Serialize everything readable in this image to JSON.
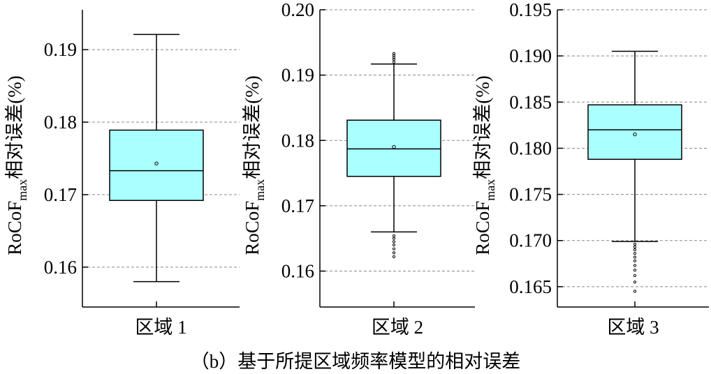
{
  "caption": "（b）基于所提区域频率模型的相对误差",
  "colors": {
    "box_fill": "#aaffff",
    "grid": "#888888",
    "axis": "#000000"
  },
  "chart_data": [
    {
      "type": "box",
      "category": "区域 1",
      "ylabel_main": "RoCoF",
      "ylabel_sub": "max",
      "ylabel_rest": "相对误差(%)",
      "ylim": [
        0.1545,
        0.1955
      ],
      "yticks": [
        0.16,
        0.17,
        0.18,
        0.19
      ],
      "ytick_labels": [
        "0.16",
        "0.17",
        "0.18",
        "0.19"
      ],
      "grid": true,
      "whisker_low": 0.158,
      "q1": 0.1692,
      "median": 0.1733,
      "q3": 0.1789,
      "whisker_high": 0.1921,
      "mean": 0.1743,
      "outliers": []
    },
    {
      "type": "box",
      "category": "区域 2",
      "ylabel_main": "RoCoF",
      "ylabel_sub": "max",
      "ylabel_rest": "相对误差(%)",
      "ylim": [
        0.1545,
        0.2
      ],
      "yticks": [
        0.16,
        0.17,
        0.18,
        0.19,
        0.2
      ],
      "ytick_labels": [
        "0.16",
        "0.17",
        "0.18",
        "0.19",
        "0.20"
      ],
      "grid": true,
      "whisker_low": 0.166,
      "q1": 0.1745,
      "median": 0.1787,
      "q3": 0.1831,
      "whisker_high": 0.1917,
      "mean": 0.179,
      "outliers": [
        0.1622,
        0.1628,
        0.1634,
        0.164,
        0.1645,
        0.165,
        0.1654,
        0.192,
        0.1924,
        0.1927,
        0.193,
        0.1933
      ]
    },
    {
      "type": "box",
      "category": "区域 3",
      "ylabel_main": "RoCoF",
      "ylabel_sub": "max",
      "ylabel_rest": "相对误差(%)",
      "ylim": [
        0.1628,
        0.195
      ],
      "yticks": [
        0.165,
        0.17,
        0.175,
        0.18,
        0.185,
        0.19,
        0.195
      ],
      "ytick_labels": [
        "0.165",
        "0.170",
        "0.175",
        "0.180",
        "0.185",
        "0.190",
        "0.195"
      ],
      "grid": true,
      "whisker_low": 0.1699,
      "q1": 0.1788,
      "median": 0.182,
      "q3": 0.1847,
      "whisker_high": 0.1905,
      "mean": 0.1815,
      "outliers": [
        0.1645,
        0.1655,
        0.1662,
        0.1668,
        0.1673,
        0.1678,
        0.1682,
        0.1686,
        0.169,
        0.1693,
        0.1696
      ]
    }
  ]
}
